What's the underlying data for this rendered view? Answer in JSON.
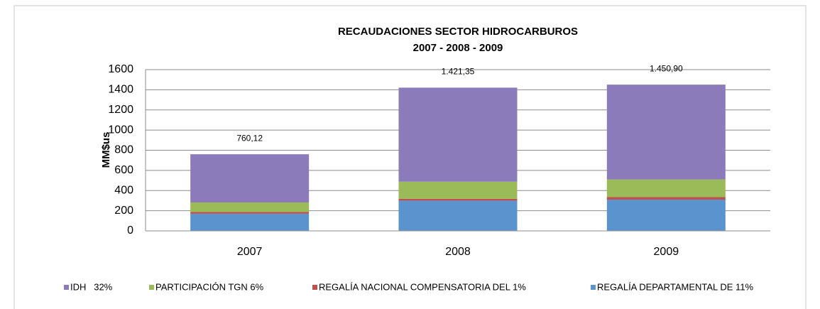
{
  "chart_data": {
    "type": "stacked_bar",
    "title": "RECAUDACIONES SECTOR HIDROCARBUROS",
    "subtitle": "2007 - 2008 - 2009",
    "y_label": "MM$us",
    "categories": [
      "2007",
      "2008",
      "2009"
    ],
    "series": [
      {
        "name": "IDH   32%",
        "color": "#8b7bba",
        "values": [
          478,
          933,
          941
        ]
      },
      {
        "name": "PARTICIPACIÓN TGN 6%",
        "color": "#9bbb59",
        "values": [
          95,
          170,
          175
        ]
      },
      {
        "name": "REGALÍA NACIONAL COMPENSATORIA DEL 1%",
        "color": "#c0504d",
        "values": [
          17,
          18,
          25
        ]
      },
      {
        "name": "REGALÍA DEPARTAMENTAL DE 11%",
        "color": "#5b93cf",
        "values": [
          170,
          300,
          310
        ]
      }
    ],
    "totals": [
      760.12,
      1421.35,
      1450.9
    ],
    "total_labels": [
      "760,12",
      "1.421,35",
      "1.450,90"
    ],
    "ylim": [
      0,
      1600
    ],
    "yticks": [
      0,
      200,
      400,
      600,
      800,
      1000,
      1200,
      1400,
      1600
    ],
    "grid": true,
    "legend": "bottom"
  }
}
